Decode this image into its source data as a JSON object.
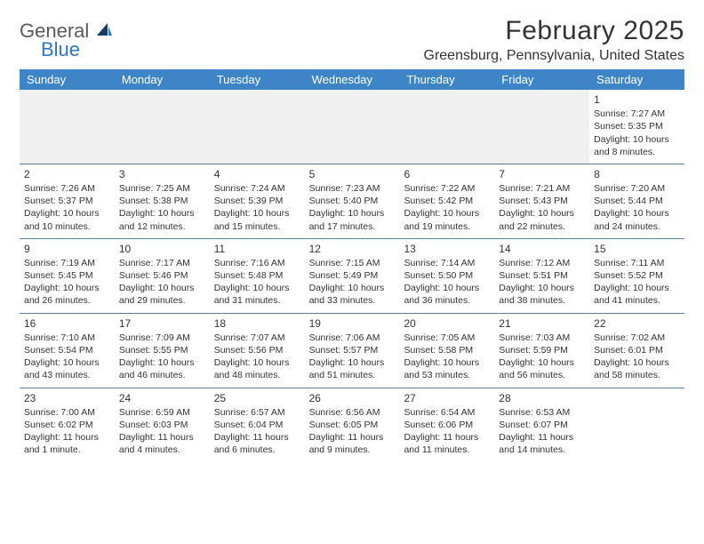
{
  "brand": {
    "word1": "General",
    "word2": "Blue"
  },
  "title": "February 2025",
  "location": "Greensburg, Pennsylvania, United States",
  "colors": {
    "header_bg": "#3d85c6",
    "header_text": "#ffffff",
    "divider": "#5b7a99",
    "empty_bg": "#f0f0f0",
    "text": "#333333",
    "logo_gray": "#5a5a5a",
    "logo_blue": "#2b78c5"
  },
  "weekdays": [
    "Sunday",
    "Monday",
    "Tuesday",
    "Wednesday",
    "Thursday",
    "Friday",
    "Saturday"
  ],
  "weeks": [
    [
      {
        "empty": true
      },
      {
        "empty": true
      },
      {
        "empty": true
      },
      {
        "empty": true
      },
      {
        "empty": true
      },
      {
        "empty": true
      },
      {
        "num": "1",
        "sunrise": "Sunrise: 7:27 AM",
        "sunset": "Sunset: 5:35 PM",
        "daylight": "Daylight: 10 hours and 8 minutes."
      }
    ],
    [
      {
        "num": "2",
        "sunrise": "Sunrise: 7:26 AM",
        "sunset": "Sunset: 5:37 PM",
        "daylight": "Daylight: 10 hours and 10 minutes."
      },
      {
        "num": "3",
        "sunrise": "Sunrise: 7:25 AM",
        "sunset": "Sunset: 5:38 PM",
        "daylight": "Daylight: 10 hours and 12 minutes."
      },
      {
        "num": "4",
        "sunrise": "Sunrise: 7:24 AM",
        "sunset": "Sunset: 5:39 PM",
        "daylight": "Daylight: 10 hours and 15 minutes."
      },
      {
        "num": "5",
        "sunrise": "Sunrise: 7:23 AM",
        "sunset": "Sunset: 5:40 PM",
        "daylight": "Daylight: 10 hours and 17 minutes."
      },
      {
        "num": "6",
        "sunrise": "Sunrise: 7:22 AM",
        "sunset": "Sunset: 5:42 PM",
        "daylight": "Daylight: 10 hours and 19 minutes."
      },
      {
        "num": "7",
        "sunrise": "Sunrise: 7:21 AM",
        "sunset": "Sunset: 5:43 PM",
        "daylight": "Daylight: 10 hours and 22 minutes."
      },
      {
        "num": "8",
        "sunrise": "Sunrise: 7:20 AM",
        "sunset": "Sunset: 5:44 PM",
        "daylight": "Daylight: 10 hours and 24 minutes."
      }
    ],
    [
      {
        "num": "9",
        "sunrise": "Sunrise: 7:19 AM",
        "sunset": "Sunset: 5:45 PM",
        "daylight": "Daylight: 10 hours and 26 minutes."
      },
      {
        "num": "10",
        "sunrise": "Sunrise: 7:17 AM",
        "sunset": "Sunset: 5:46 PM",
        "daylight": "Daylight: 10 hours and 29 minutes."
      },
      {
        "num": "11",
        "sunrise": "Sunrise: 7:16 AM",
        "sunset": "Sunset: 5:48 PM",
        "daylight": "Daylight: 10 hours and 31 minutes."
      },
      {
        "num": "12",
        "sunrise": "Sunrise: 7:15 AM",
        "sunset": "Sunset: 5:49 PM",
        "daylight": "Daylight: 10 hours and 33 minutes."
      },
      {
        "num": "13",
        "sunrise": "Sunrise: 7:14 AM",
        "sunset": "Sunset: 5:50 PM",
        "daylight": "Daylight: 10 hours and 36 minutes."
      },
      {
        "num": "14",
        "sunrise": "Sunrise: 7:12 AM",
        "sunset": "Sunset: 5:51 PM",
        "daylight": "Daylight: 10 hours and 38 minutes."
      },
      {
        "num": "15",
        "sunrise": "Sunrise: 7:11 AM",
        "sunset": "Sunset: 5:52 PM",
        "daylight": "Daylight: 10 hours and 41 minutes."
      }
    ],
    [
      {
        "num": "16",
        "sunrise": "Sunrise: 7:10 AM",
        "sunset": "Sunset: 5:54 PM",
        "daylight": "Daylight: 10 hours and 43 minutes."
      },
      {
        "num": "17",
        "sunrise": "Sunrise: 7:09 AM",
        "sunset": "Sunset: 5:55 PM",
        "daylight": "Daylight: 10 hours and 46 minutes."
      },
      {
        "num": "18",
        "sunrise": "Sunrise: 7:07 AM",
        "sunset": "Sunset: 5:56 PM",
        "daylight": "Daylight: 10 hours and 48 minutes."
      },
      {
        "num": "19",
        "sunrise": "Sunrise: 7:06 AM",
        "sunset": "Sunset: 5:57 PM",
        "daylight": "Daylight: 10 hours and 51 minutes."
      },
      {
        "num": "20",
        "sunrise": "Sunrise: 7:05 AM",
        "sunset": "Sunset: 5:58 PM",
        "daylight": "Daylight: 10 hours and 53 minutes."
      },
      {
        "num": "21",
        "sunrise": "Sunrise: 7:03 AM",
        "sunset": "Sunset: 5:59 PM",
        "daylight": "Daylight: 10 hours and 56 minutes."
      },
      {
        "num": "22",
        "sunrise": "Sunrise: 7:02 AM",
        "sunset": "Sunset: 6:01 PM",
        "daylight": "Daylight: 10 hours and 58 minutes."
      }
    ],
    [
      {
        "num": "23",
        "sunrise": "Sunrise: 7:00 AM",
        "sunset": "Sunset: 6:02 PM",
        "daylight": "Daylight: 11 hours and 1 minute."
      },
      {
        "num": "24",
        "sunrise": "Sunrise: 6:59 AM",
        "sunset": "Sunset: 6:03 PM",
        "daylight": "Daylight: 11 hours and 4 minutes."
      },
      {
        "num": "25",
        "sunrise": "Sunrise: 6:57 AM",
        "sunset": "Sunset: 6:04 PM",
        "daylight": "Daylight: 11 hours and 6 minutes."
      },
      {
        "num": "26",
        "sunrise": "Sunrise: 6:56 AM",
        "sunset": "Sunset: 6:05 PM",
        "daylight": "Daylight: 11 hours and 9 minutes."
      },
      {
        "num": "27",
        "sunrise": "Sunrise: 6:54 AM",
        "sunset": "Sunset: 6:06 PM",
        "daylight": "Daylight: 11 hours and 11 minutes."
      },
      {
        "num": "28",
        "sunrise": "Sunrise: 6:53 AM",
        "sunset": "Sunset: 6:07 PM",
        "daylight": "Daylight: 11 hours and 14 minutes."
      },
      {
        "empty": true
      }
    ]
  ]
}
